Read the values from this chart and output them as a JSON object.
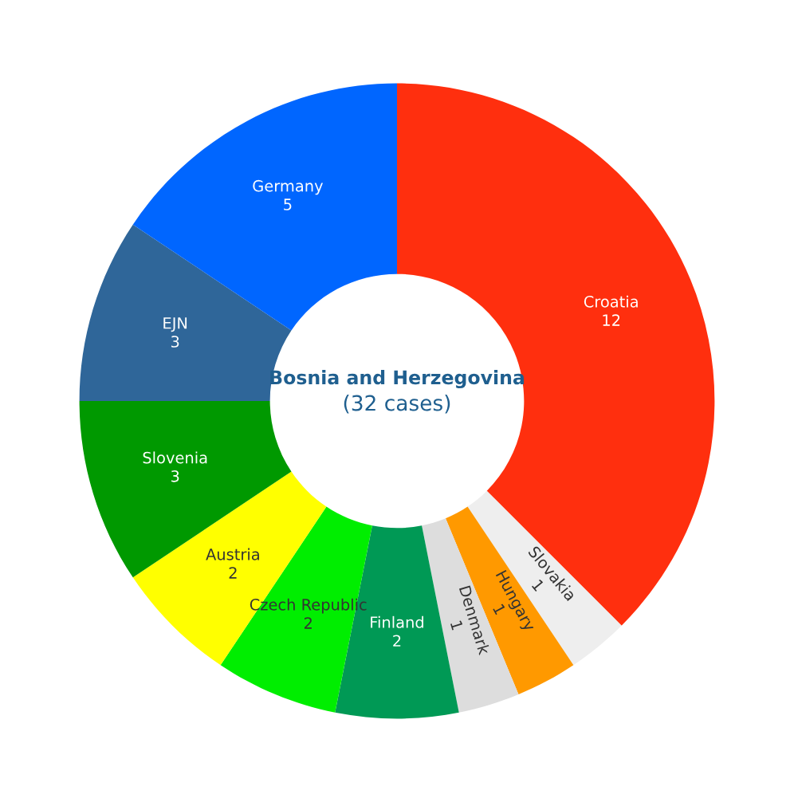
{
  "chart_data": {
    "type": "donut",
    "title": "Bosnia and Herzegovina",
    "subtitle": "(32 cases)",
    "categories": [
      "Croatia",
      "Slovakia",
      "Hungary",
      "Denmark",
      "Finland",
      "Czech Republic",
      "Austria",
      "Slovenia",
      "EJN",
      "Germany"
    ],
    "values": [
      12,
      1,
      1,
      1,
      2,
      2,
      2,
      3,
      3,
      5
    ],
    "colors": [
      "#ff2f0e",
      "#eeeeee",
      "#ff9900",
      "#dddddd",
      "#009955",
      "#00ee00",
      "#ffff00",
      "#009900",
      "#2f6699",
      "#0066ff"
    ],
    "data_labels": true,
    "legend": false
  }
}
